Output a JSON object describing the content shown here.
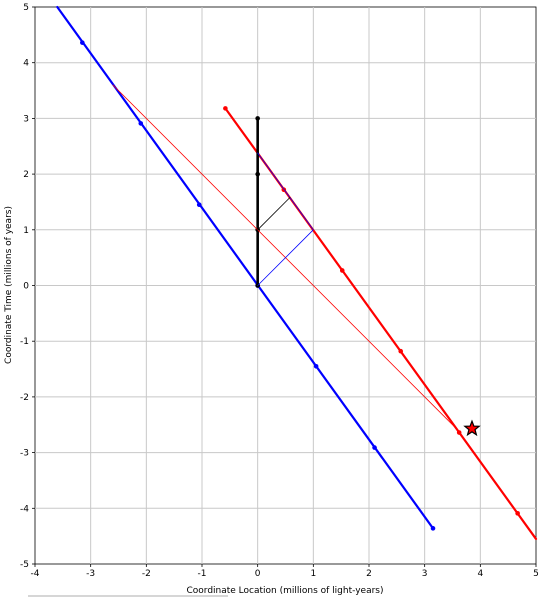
{
  "chart_data": {
    "type": "line",
    "title": "",
    "xlabel": "Coordinate Location (millions of light-years)",
    "ylabel": "Coordinate Time (millions of years)",
    "xlim": [
      -4,
      5
    ],
    "ylim": [
      -5,
      5
    ],
    "x_ticks": [
      -4,
      -3,
      -2,
      -1,
      0,
      1,
      2,
      3,
      4,
      5
    ],
    "y_ticks": [
      -5,
      -4,
      -3,
      -2,
      -1,
      0,
      1,
      2,
      3,
      4,
      5
    ],
    "grid": true,
    "series": [
      {
        "color": "#0000ff",
        "width": 2.2,
        "line": [
          [
            -3.6,
            5.0
          ],
          [
            3.15,
            -4.36
          ]
        ],
        "points": [
          [
            -3.15,
            4.36
          ],
          [
            -2.1,
            2.91
          ],
          [
            -1.05,
            1.45
          ],
          [
            0,
            0
          ],
          [
            1.05,
            -1.45
          ],
          [
            2.1,
            -2.91
          ],
          [
            3.15,
            -4.36
          ]
        ]
      },
      {
        "color": "#ff0000",
        "width": 2.2,
        "line": [
          [
            -0.58,
            3.18
          ],
          [
            5.0,
            -4.55
          ]
        ],
        "points": [
          [
            -0.58,
            3.18
          ],
          [
            0.47,
            1.72
          ],
          [
            1.52,
            0.27
          ],
          [
            2.57,
            -1.18
          ],
          [
            3.62,
            -2.64
          ],
          [
            4.67,
            -4.09
          ]
        ]
      },
      {
        "color": "#000000",
        "width": 2.6,
        "line": [
          [
            0,
            0
          ],
          [
            0,
            3
          ]
        ],
        "points": [
          [
            0,
            0
          ],
          [
            0,
            1
          ],
          [
            0,
            2
          ],
          [
            0,
            3
          ]
        ]
      },
      {
        "color": "#ff0000",
        "width": 0.8,
        "line": [
          [
            -2.6,
            3.6
          ],
          [
            3.6,
            -2.6
          ]
        ],
        "points": []
      },
      {
        "color": "#0000ff",
        "width": 0.8,
        "line": [
          [
            0,
            0
          ],
          [
            1,
            1
          ],
          [
            0,
            2.38
          ]
        ],
        "points": []
      },
      {
        "color": "#000000",
        "width": 0.8,
        "line": [
          [
            0,
            1
          ],
          [
            0.58,
            1.58
          ]
        ],
        "points": []
      }
    ],
    "star": {
      "x": 3.85,
      "y": -2.57,
      "color": "#ff0000"
    }
  }
}
